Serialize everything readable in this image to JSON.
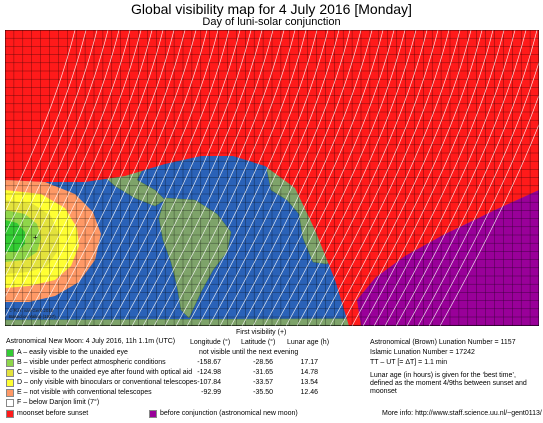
{
  "header": {
    "title": "Global visibility map for 4 July 2016 [Monday]",
    "subtitle": "Day of luni-solar conjunction"
  },
  "map": {
    "zone_colors": {
      "A": "#33cc33",
      "B": "#8fd64a",
      "C": "#e3e23c",
      "D": "#ffff33",
      "E": "#ff9966",
      "F": "#ffffff",
      "moonset": "#ff1a1a",
      "before_conjunction": "#990099",
      "ocean": "#2a62b8",
      "land": "#7ea36a",
      "grid": "#000000",
      "contour": "#ffffff"
    },
    "copyright_lines": [
      "© R.H. van Gent 2015",
      "Based on Yallop (1997)"
    ]
  },
  "conjunction": "Astronomical New Moon: 4 July 2016, 11h 1.1m (UTC)",
  "first_visibility": {
    "title": "First visibility (+)",
    "headers": [
      "Longitude (°)",
      "Latitude (°)",
      "Lunar age (h)"
    ],
    "rows": [
      {
        "lon": "not visible until the next evening",
        "lat": "",
        "age": ""
      },
      {
        "lon": "-158.67",
        "lat": "-28.56",
        "age": "17.17"
      },
      {
        "lon": "-124.98",
        "lat": "-31.65",
        "age": "14.78"
      },
      {
        "lon": "-107.84",
        "lat": "-33.57",
        "age": "13.54"
      },
      {
        "lon": "-92.99",
        "lat": "-35.50",
        "age": "12.46"
      }
    ]
  },
  "legend": {
    "zones": [
      {
        "label": "A – easily visible to the unaided eye",
        "color": "#33cc33"
      },
      {
        "label": "B – visible under perfect atmospheric conditions",
        "color": "#8fd64a"
      },
      {
        "label": "C – visible to the unaided eye after found with optical aid",
        "color": "#e3e23c"
      },
      {
        "label": "D – only visible with binoculars or conventional telescopes",
        "color": "#ffff33"
      },
      {
        "label": "E – not visible with conventional telescopes",
        "color": "#ff9966"
      },
      {
        "label": "F – below Danjon limit (7°)",
        "color": "#ffffff"
      }
    ],
    "moonset": {
      "label": "moonset before sunset",
      "color": "#ff1a1a"
    },
    "before": {
      "label": "before conjunction (astronomical new moon)",
      "color": "#990099"
    }
  },
  "lunation": {
    "brown": "Astronomical (Brown) Lunation Number = 1157",
    "islamic": "Islamic Lunation Number = 17242",
    "tt": "TT – UT [= ΔT] = 1.1 min",
    "note": "Lunar age (in hours) is given for the ‘best time’, defined as the moment 4/9ths between sunset and moonset"
  },
  "more_info": "More info: http://www.staff.science.uu.nl/~gent0113/"
}
